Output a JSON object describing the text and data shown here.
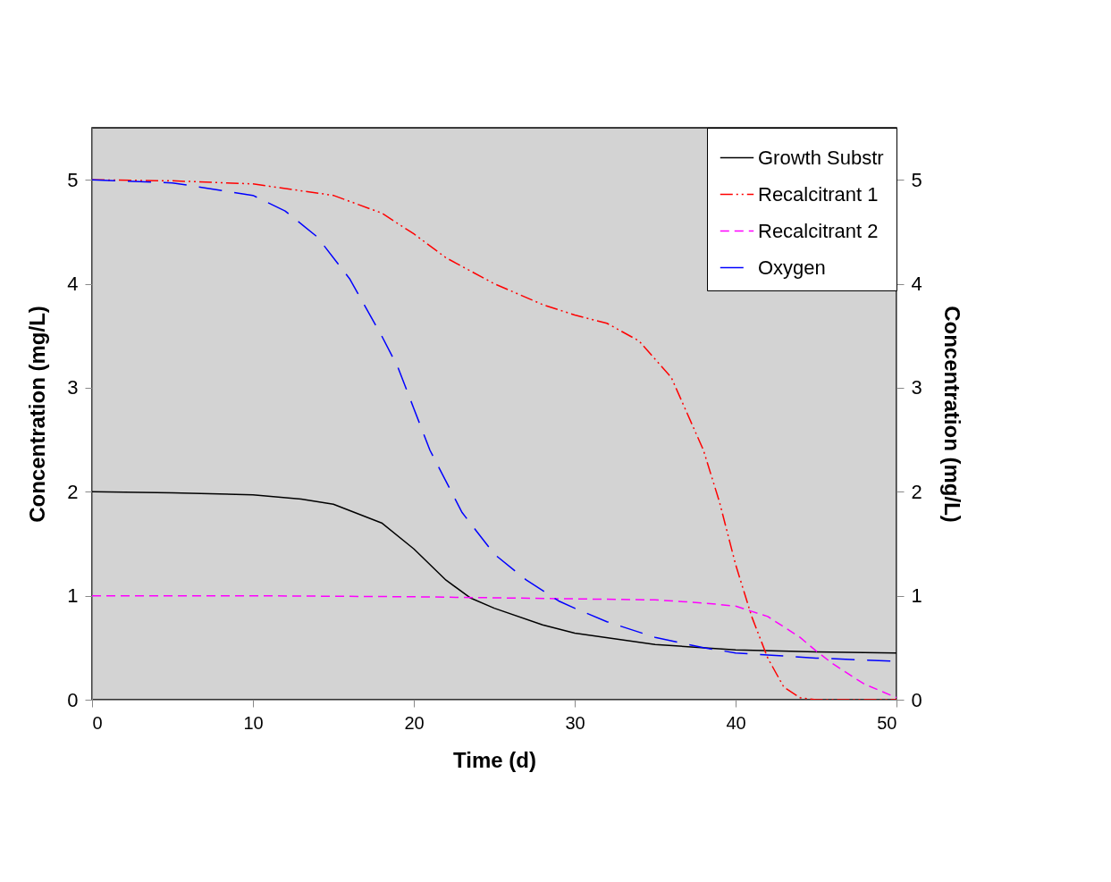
{
  "chart_data": {
    "type": "line",
    "xlabel": "Time (d)",
    "ylabel": "Concentration (mg/L)",
    "y2label": "Concentration (mg/L)",
    "xlim": [
      0,
      50
    ],
    "xticks": [
      0,
      10,
      20,
      30,
      40,
      50
    ],
    "ylim": [
      0,
      5.5
    ],
    "yticks": [
      0,
      1,
      2,
      3,
      4,
      5
    ],
    "y2lim": [
      0,
      5.5
    ],
    "y2ticks": [
      0,
      1,
      2,
      3,
      4,
      5
    ],
    "grid": false,
    "legend": "top right",
    "marker": "none",
    "series": [
      {
        "name": "Growth Substr",
        "color": "#000000",
        "line_style": "solid",
        "x": [
          0,
          5,
          10,
          13,
          15,
          18,
          20,
          22,
          23.5,
          25,
          28,
          30,
          35,
          40,
          45,
          50
        ],
        "values": [
          2.0,
          1.99,
          1.97,
          1.93,
          1.88,
          1.7,
          1.45,
          1.15,
          0.98,
          0.88,
          0.72,
          0.64,
          0.53,
          0.48,
          0.46,
          0.45
        ]
      },
      {
        "name": "Recalcitrant 1",
        "color": "#ff0000",
        "line_style": "dashdotdot",
        "x": [
          0,
          5,
          10,
          15,
          18,
          20,
          22,
          25,
          28,
          30,
          32,
          34,
          36,
          38,
          39,
          40,
          41,
          42,
          43,
          44,
          45,
          50
        ],
        "values": [
          5.0,
          4.99,
          4.96,
          4.85,
          4.68,
          4.48,
          4.25,
          4.0,
          3.8,
          3.7,
          3.62,
          3.45,
          3.1,
          2.4,
          1.9,
          1.3,
          0.8,
          0.4,
          0.12,
          0.02,
          0.0,
          0.0
        ]
      },
      {
        "name": "Recalcitrant 2",
        "color": "#ff00ff",
        "line_style": "dashed",
        "x": [
          0,
          10,
          20,
          30,
          35,
          38,
          40,
          42,
          44,
          45,
          46,
          48,
          50
        ],
        "values": [
          1.0,
          1.0,
          0.99,
          0.97,
          0.96,
          0.93,
          0.9,
          0.8,
          0.6,
          0.47,
          0.35,
          0.15,
          0.02
        ]
      },
      {
        "name": "Oxygen",
        "color": "#0000ff",
        "line_style": "longdashed",
        "x": [
          0,
          5,
          10,
          12,
          14,
          16,
          18,
          19,
          20,
          21,
          22,
          23,
          25,
          27,
          29,
          30,
          32,
          35,
          38,
          40,
          45,
          50
        ],
        "values": [
          5.0,
          4.97,
          4.85,
          4.7,
          4.45,
          4.05,
          3.5,
          3.2,
          2.8,
          2.4,
          2.1,
          1.8,
          1.4,
          1.15,
          0.95,
          0.88,
          0.75,
          0.6,
          0.5,
          0.45,
          0.4,
          0.37
        ]
      }
    ]
  }
}
